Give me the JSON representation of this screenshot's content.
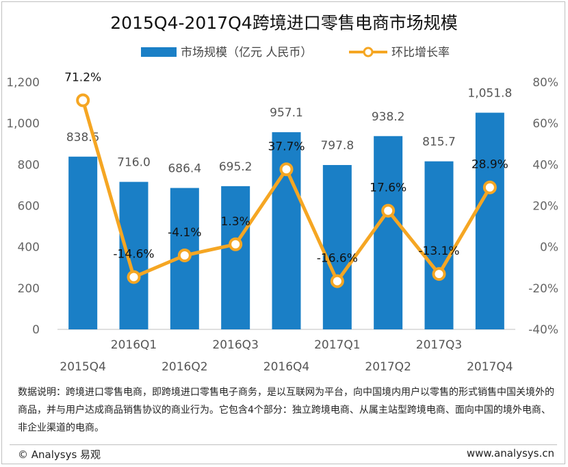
{
  "chart_data": {
    "type": "bar",
    "title": "2015Q4-2017Q4跨境进口零售电商市场规模",
    "categories": [
      "2015Q4",
      "2016Q1",
      "2016Q2",
      "2016Q3",
      "2016Q4",
      "2017Q1",
      "2017Q2",
      "2017Q3",
      "2017Q4"
    ],
    "series": [
      {
        "name": "市场规模（亿元 人民币）",
        "type": "bar",
        "axis": "left",
        "color": "#1a7fc6",
        "values": [
          838.5,
          716.0,
          686.4,
          695.2,
          957.1,
          797.8,
          938.2,
          815.7,
          1051.8
        ],
        "labels": [
          "838.5",
          "716.0",
          "686.4",
          "695.2",
          "957.1",
          "797.8",
          "938.2",
          "815.7",
          "1,051.8"
        ]
      },
      {
        "name": "环比增长率",
        "type": "line",
        "axis": "right",
        "color": "#f5a623",
        "values": [
          71.2,
          -14.6,
          -4.1,
          1.3,
          37.7,
          -16.6,
          17.6,
          -13.1,
          28.9
        ],
        "labels": [
          "71.2%",
          "-14.6%",
          "-4.1%",
          "1.3%",
          "37.7%",
          "-16.6%",
          "17.6%",
          "-13.1%",
          "28.9%"
        ]
      }
    ],
    "y_left": {
      "min": 0,
      "max": 1200,
      "ticks": [
        "0",
        "200",
        "400",
        "600",
        "800",
        "1,000",
        "1,200"
      ]
    },
    "y_right": {
      "min": -40,
      "max": 80,
      "ticks": [
        "-40%",
        "-20%",
        "0%",
        "20%",
        "40%",
        "60%",
        "80%"
      ]
    },
    "grid": false,
    "legend_position": "top"
  },
  "note": "数据说明：跨境进口零售电商，即跨境进口零售电子商务，是以互联网为平台，向中国境内用户以零售的形式销售中国关境外的商品，并与用户达成商品销售协议的商业行为。它包含4个部分：独立跨境电商、从属主站型跨境电商、面向中国的境外电商、非企业渠道的电商。",
  "footer": {
    "left": "© Analysys 易观",
    "right": "www.analysys.cn"
  }
}
